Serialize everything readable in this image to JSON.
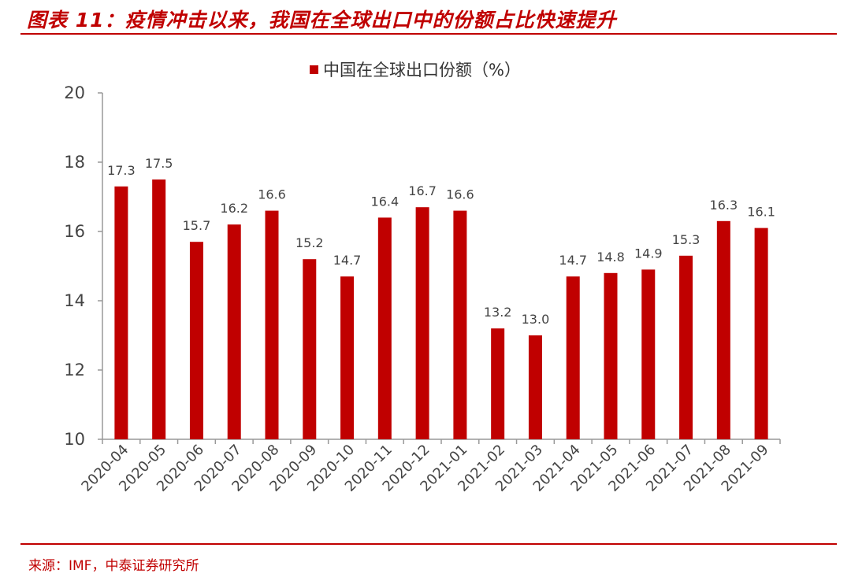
{
  "header": {
    "title": "图表 11：疫情冲击以来，我国在全球出口中的份额占比快速提升"
  },
  "footer": {
    "source": "来源：IMF，中泰证券研究所"
  },
  "colors": {
    "accent": "#c00000",
    "bar": "#c00000",
    "axis": "#999999"
  },
  "chart_data": {
    "type": "bar",
    "categories": [
      "2020-04",
      "2020-05",
      "2020-06",
      "2020-07",
      "2020-08",
      "2020-09",
      "2020-10",
      "2020-11",
      "2020-12",
      "2021-01",
      "2021-02",
      "2021-03",
      "2021-04",
      "2021-05",
      "2021-06",
      "2021-07",
      "2021-08",
      "2021-09"
    ],
    "series": [
      {
        "name": "中国在全球出口份额（%）",
        "values": [
          17.3,
          17.5,
          15.7,
          16.2,
          16.6,
          15.2,
          14.7,
          16.4,
          16.7,
          16.6,
          13.2,
          13.0,
          14.7,
          14.8,
          14.9,
          15.3,
          16.3,
          16.1
        ]
      }
    ],
    "ylim": [
      10,
      20
    ],
    "yticks": [
      10,
      12,
      14,
      16,
      18,
      20
    ],
    "legend_position": "top",
    "grid": false,
    "data_labels": true
  }
}
